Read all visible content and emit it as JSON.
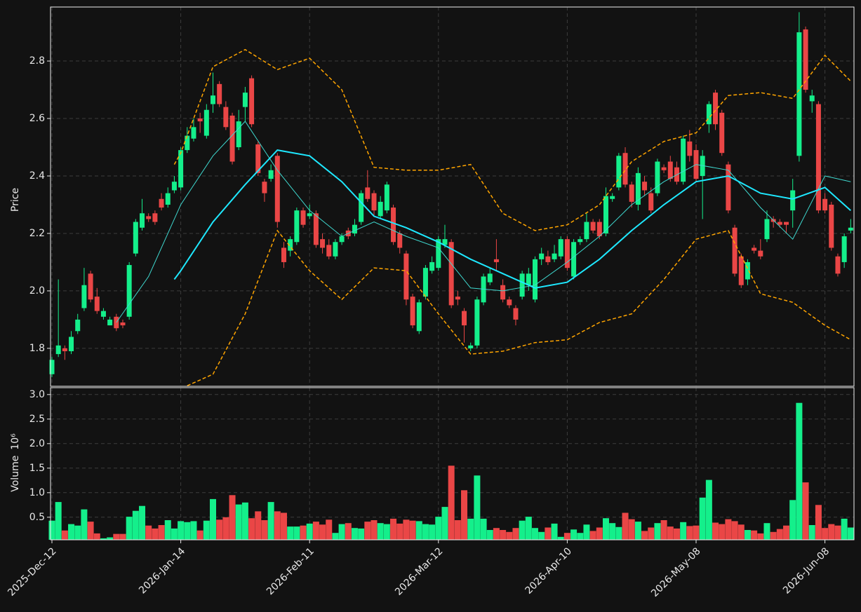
{
  "chart_data": {
    "type": "candlestick",
    "ylabel": "Price",
    "volume_label": "Volume",
    "volume_multiplier": "10⁶",
    "up_color": "#14ef8b",
    "down_color": "#ea4646",
    "grid": true,
    "categories": [
      "2025-Dec-12",
      null,
      null,
      null,
      null,
      null,
      null,
      null,
      null,
      null,
      null,
      null,
      null,
      null,
      null,
      null,
      null,
      null,
      null,
      null,
      "2026-Jan-14",
      null,
      null,
      null,
      null,
      null,
      null,
      null,
      null,
      null,
      null,
      null,
      null,
      null,
      null,
      null,
      null,
      null,
      null,
      null,
      "2026-Feb-11",
      null,
      null,
      null,
      null,
      null,
      null,
      null,
      null,
      null,
      null,
      null,
      null,
      null,
      null,
      null,
      null,
      null,
      null,
      null,
      "2026-Mar-12",
      null,
      null,
      null,
      null,
      null,
      null,
      null,
      null,
      null,
      null,
      null,
      null,
      null,
      null,
      null,
      null,
      null,
      null,
      null,
      "2026-Apr-10",
      null,
      null,
      null,
      null,
      null,
      null,
      null,
      null,
      null,
      null,
      null,
      null,
      null,
      null,
      null,
      null,
      null,
      null,
      null,
      "2026-May-08",
      null,
      null,
      null,
      null,
      null,
      null,
      null,
      null,
      null,
      null,
      null,
      null,
      null,
      null,
      null,
      null,
      null,
      null,
      null,
      "2026-Jun-08",
      null,
      null,
      null,
      null
    ],
    "open": [
      1.71,
      1.78,
      1.8,
      1.79,
      1.86,
      1.94,
      2.06,
      1.98,
      1.91,
      1.88,
      1.91,
      1.89,
      1.91,
      2.13,
      2.22,
      2.26,
      2.27,
      2.32,
      2.3,
      2.35,
      2.36,
      2.49,
      2.53,
      2.6,
      2.54,
      2.65,
      2.72,
      2.64,
      2.61,
      2.5,
      2.64,
      2.74,
      2.51,
      2.38,
      2.39,
      2.47,
      2.15,
      2.14,
      2.17,
      2.28,
      2.26,
      2.27,
      2.18,
      2.16,
      2.12,
      2.17,
      2.21,
      2.2,
      2.24,
      2.36,
      2.34,
      2.26,
      2.28,
      2.29,
      2.2,
      2.13,
      1.98,
      1.86,
      1.98,
      2.07,
      2.08,
      2.16,
      2.17,
      1.98,
      1.93,
      1.8,
      1.81,
      1.96,
      2.03,
      2.11,
      2.02,
      1.97,
      1.94,
      1.98,
      2.02,
      1.97,
      2.11,
      2.12,
      2.11,
      2.12,
      2.18,
      2.05,
      2.17,
      2.18,
      2.24,
      2.24,
      2.2,
      2.32,
      2.36,
      2.48,
      2.37,
      2.3,
      2.38,
      2.34,
      2.34,
      2.43,
      2.45,
      2.43,
      2.38,
      2.52,
      2.49,
      2.4,
      2.58,
      2.69,
      2.62,
      2.44,
      2.22,
      2.12,
      2.04,
      2.15,
      2.14,
      2.18,
      2.25,
      2.24,
      2.24,
      2.28,
      2.47,
      2.91,
      2.66,
      2.65,
      2.32,
      2.3,
      2.12,
      2.1,
      2.21
    ],
    "high": [
      1.77,
      2.04,
      1.81,
      1.86,
      1.92,
      2.08,
      2.07,
      2.01,
      1.94,
      1.91,
      1.92,
      1.9,
      2.1,
      2.25,
      2.32,
      2.27,
      2.28,
      2.34,
      2.36,
      2.4,
      2.5,
      2.57,
      2.6,
      2.62,
      2.65,
      2.76,
      2.73,
      2.66,
      2.62,
      2.63,
      2.71,
      2.75,
      2.52,
      2.39,
      2.44,
      2.48,
      2.17,
      2.19,
      2.29,
      2.29,
      2.3,
      2.28,
      2.2,
      2.18,
      2.18,
      2.2,
      2.22,
      2.25,
      2.35,
      2.42,
      2.35,
      2.33,
      2.38,
      2.3,
      2.21,
      2.14,
      1.99,
      1.97,
      2.09,
      2.12,
      2.19,
      2.23,
      2.18,
      2.0,
      1.94,
      1.82,
      1.98,
      2.06,
      2.08,
      2.18,
      2.04,
      1.98,
      1.95,
      2.07,
      2.08,
      2.12,
      2.15,
      2.14,
      2.16,
      2.19,
      2.19,
      2.18,
      2.19,
      2.27,
      2.25,
      2.25,
      2.36,
      2.34,
      2.48,
      2.5,
      2.38,
      2.43,
      2.4,
      2.36,
      2.46,
      2.44,
      2.47,
      2.45,
      2.54,
      2.56,
      2.51,
      2.49,
      2.66,
      2.7,
      2.63,
      2.45,
      2.23,
      2.13,
      2.11,
      2.16,
      2.18,
      2.28,
      2.26,
      2.25,
      2.24,
      2.39,
      2.97,
      2.92,
      2.7,
      2.66,
      2.34,
      2.31,
      2.13,
      2.2,
      2.25
    ],
    "low": [
      1.7,
      1.77,
      1.76,
      1.78,
      1.85,
      1.93,
      1.96,
      1.92,
      1.9,
      1.88,
      1.86,
      1.87,
      1.9,
      2.12,
      2.21,
      2.24,
      2.23,
      2.28,
      2.29,
      2.34,
      2.35,
      2.48,
      2.52,
      2.55,
      2.53,
      2.62,
      2.64,
      2.56,
      2.44,
      2.49,
      2.59,
      2.57,
      2.4,
      2.31,
      2.38,
      2.22,
      2.08,
      2.12,
      2.16,
      2.22,
      2.25,
      2.15,
      2.13,
      2.11,
      2.11,
      2.16,
      2.18,
      2.19,
      2.23,
      2.31,
      2.26,
      2.25,
      2.27,
      2.16,
      2.13,
      1.95,
      1.87,
      1.85,
      1.97,
      2.06,
      2.07,
      2.15,
      1.94,
      1.95,
      1.82,
      1.79,
      1.8,
      1.95,
      2.02,
      2.07,
      1.96,
      1.94,
      1.88,
      1.97,
      2.0,
      1.96,
      2.09,
      2.09,
      2.1,
      2.11,
      2.07,
      2.04,
      2.16,
      2.17,
      2.2,
      2.18,
      2.19,
      2.31,
      2.35,
      2.36,
      2.29,
      2.28,
      2.33,
      2.27,
      2.33,
      2.41,
      2.38,
      2.37,
      2.37,
      2.45,
      2.38,
      2.25,
      2.55,
      2.56,
      2.47,
      2.27,
      2.05,
      2.01,
      2.02,
      2.13,
      2.11,
      2.17,
      2.22,
      2.22,
      2.2,
      2.22,
      2.45,
      2.69,
      2.62,
      2.27,
      2.27,
      2.14,
      2.05,
      2.08,
      2.2
    ],
    "close": [
      1.76,
      1.81,
      1.79,
      1.84,
      1.9,
      2.02,
      1.97,
      1.93,
      1.93,
      1.9,
      1.87,
      1.88,
      2.09,
      2.24,
      2.27,
      2.25,
      2.24,
      2.29,
      2.34,
      2.38,
      2.49,
      2.54,
      2.57,
      2.59,
      2.63,
      2.68,
      2.65,
      2.57,
      2.45,
      2.59,
      2.69,
      2.58,
      2.41,
      2.34,
      2.42,
      2.24,
      2.1,
      2.18,
      2.28,
      2.23,
      2.27,
      2.16,
      2.15,
      2.12,
      2.17,
      2.19,
      2.19,
      2.23,
      2.34,
      2.32,
      2.28,
      2.31,
      2.37,
      2.17,
      2.15,
      1.97,
      1.88,
      1.96,
      2.08,
      2.1,
      2.18,
      2.18,
      1.95,
      1.97,
      1.88,
      1.81,
      1.97,
      2.05,
      2.06,
      2.1,
      1.97,
      1.95,
      1.9,
      2.06,
      2.06,
      2.11,
      2.13,
      2.1,
      2.13,
      2.18,
      2.08,
      2.17,
      2.18,
      2.24,
      2.21,
      2.19,
      2.33,
      2.33,
      2.47,
      2.37,
      2.31,
      2.41,
      2.35,
      2.28,
      2.45,
      2.42,
      2.39,
      2.38,
      2.53,
      2.47,
      2.39,
      2.47,
      2.65,
      2.58,
      2.48,
      2.28,
      2.06,
      2.02,
      2.1,
      2.14,
      2.12,
      2.25,
      2.24,
      2.23,
      2.23,
      2.35,
      2.9,
      2.7,
      2.68,
      2.28,
      2.28,
      2.15,
      2.06,
      2.19,
      2.22
    ],
    "volume": [
      0.43,
      0.81,
      0.23,
      0.36,
      0.33,
      0.66,
      0.41,
      0.17,
      0.07,
      0.09,
      0.16,
      0.16,
      0.51,
      0.63,
      0.73,
      0.33,
      0.27,
      0.34,
      0.44,
      0.27,
      0.42,
      0.4,
      0.42,
      0.23,
      0.43,
      0.87,
      0.45,
      0.5,
      0.95,
      0.76,
      0.8,
      0.48,
      0.62,
      0.44,
      0.81,
      0.62,
      0.59,
      0.31,
      0.31,
      0.33,
      0.37,
      0.41,
      0.35,
      0.45,
      0.18,
      0.36,
      0.38,
      0.28,
      0.27,
      0.41,
      0.44,
      0.38,
      0.36,
      0.47,
      0.37,
      0.45,
      0.43,
      0.42,
      0.36,
      0.35,
      0.51,
      0.71,
      1.55,
      0.44,
      1.05,
      0.47,
      1.35,
      0.47,
      0.24,
      0.28,
      0.24,
      0.2,
      0.28,
      0.43,
      0.51,
      0.28,
      0.2,
      0.29,
      0.37,
      0.1,
      0.18,
      0.25,
      0.18,
      0.35,
      0.22,
      0.29,
      0.48,
      0.38,
      0.3,
      0.59,
      0.46,
      0.41,
      0.22,
      0.29,
      0.38,
      0.44,
      0.31,
      0.27,
      0.4,
      0.32,
      0.33,
      0.9,
      1.26,
      0.39,
      0.36,
      0.46,
      0.42,
      0.35,
      0.24,
      0.23,
      0.17,
      0.38,
      0.2,
      0.26,
      0.33,
      0.85,
      2.83,
      1.21,
      0.34,
      0.75,
      0.28,
      0.36,
      0.33,
      0.47,
      0.29
    ],
    "ylim": [
      1.668,
      2.988
    ],
    "yticks": [
      1.8,
      {
        "value": 2,
        "label": "2.0"
      },
      2.2,
      2.4,
      2.6,
      2.8
    ],
    "volume_ylim": [
      0.04,
      3.14
    ],
    "volume_yticks": [
      0.5,
      {
        "value": 1,
        "label": "1.0"
      },
      1.5,
      {
        "value": 2,
        "label": "2.0"
      },
      2.5,
      {
        "value": 3,
        "label": "3.0"
      }
    ],
    "overlays": [
      {
        "color": "#3fd9d0",
        "width": 1,
        "dash": false,
        "x": [
          10,
          15,
          20,
          25,
          30,
          35,
          40,
          45,
          50,
          55,
          60,
          65,
          70,
          75,
          80,
          85,
          90,
          95,
          100,
          105,
          110,
          115,
          120,
          124
        ],
        "values": [
          1.89,
          2.05,
          2.3,
          2.47,
          2.59,
          2.42,
          2.28,
          2.19,
          2.24,
          2.19,
          2.15,
          2.01,
          2.0,
          2.02,
          2.1,
          2.19,
          2.3,
          2.38,
          2.44,
          2.42,
          2.29,
          2.18,
          2.4,
          2.38
        ]
      },
      {
        "color": "#1ee8ff",
        "width": 2,
        "dash": false,
        "x": [
          19,
          20,
          25,
          30,
          35,
          40,
          45,
          50,
          55,
          60,
          65,
          70,
          75,
          80,
          85,
          90,
          95,
          100,
          105,
          110,
          115,
          120,
          124
        ],
        "values": [
          2.04,
          2.07,
          2.24,
          2.37,
          2.49,
          2.47,
          2.38,
          2.26,
          2.22,
          2.17,
          2.11,
          2.06,
          2.01,
          2.03,
          2.11,
          2.21,
          2.3,
          2.38,
          2.4,
          2.34,
          2.32,
          2.36,
          2.28
        ]
      },
      {
        "color": "#ffa500",
        "width": 1.5,
        "dash": true,
        "x": [
          19,
          20,
          25,
          30,
          35,
          40,
          45,
          50,
          55,
          60,
          65,
          70,
          75,
          80,
          85,
          90,
          95,
          100,
          105,
          110,
          115,
          120,
          124
        ],
        "values": [
          2.44,
          2.48,
          2.78,
          2.84,
          2.77,
          2.81,
          2.7,
          2.43,
          2.42,
          2.42,
          2.44,
          2.27,
          2.21,
          2.23,
          2.3,
          2.45,
          2.52,
          2.55,
          2.68,
          2.69,
          2.67,
          2.82,
          2.73
        ]
      },
      {
        "color": "#ffa500",
        "width": 1.5,
        "dash": true,
        "x": [
          21,
          25,
          30,
          35,
          40,
          45,
          50,
          55,
          60,
          65,
          70,
          75,
          80,
          85,
          90,
          95,
          100,
          105,
          110,
          115,
          120,
          124
        ],
        "values": [
          1.67,
          1.71,
          1.92,
          2.21,
          2.07,
          1.97,
          2.08,
          2.07,
          1.92,
          1.78,
          1.79,
          1.82,
          1.83,
          1.89,
          1.92,
          2.04,
          2.18,
          2.21,
          1.99,
          1.96,
          1.88,
          1.83
        ]
      }
    ]
  }
}
